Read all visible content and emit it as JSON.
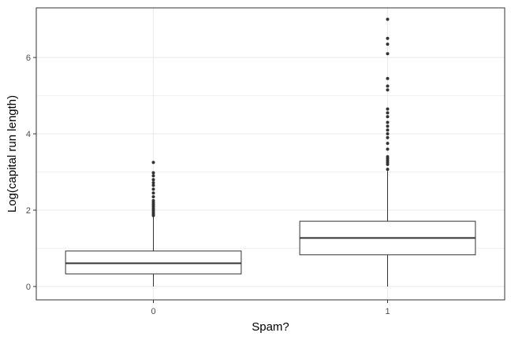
{
  "chart_data": {
    "type": "boxplot",
    "xlabel": "Spam?",
    "ylabel": "Log(capital run length)",
    "categories": [
      "0",
      "1"
    ],
    "ylim": [
      -0.35,
      7.3
    ],
    "yticks": [
      0,
      2,
      4,
      6
    ],
    "grid": true,
    "legend": "none",
    "boxes": [
      {
        "category": "0",
        "min": 0.0,
        "q1": 0.33,
        "median": 0.61,
        "q3": 0.93,
        "max": 1.83,
        "outliers": [
          1.86,
          1.9,
          1.95,
          2.0,
          2.05,
          2.1,
          2.15,
          2.2,
          2.25,
          2.35,
          2.45,
          2.55,
          2.65,
          2.72,
          2.8,
          2.9,
          2.98,
          3.25
        ]
      },
      {
        "category": "1",
        "min": 0.0,
        "q1": 0.83,
        "median": 1.27,
        "q3": 1.71,
        "max": 3.03,
        "outliers": [
          3.07,
          3.2,
          3.25,
          3.3,
          3.35,
          3.4,
          3.6,
          3.75,
          3.9,
          4.0,
          4.1,
          4.2,
          4.3,
          4.45,
          4.55,
          4.65,
          5.15,
          5.25,
          5.45,
          6.1,
          6.35,
          6.5,
          7.0
        ]
      }
    ],
    "colors": {
      "box_stroke": "#333333",
      "box_fill": "#ffffff",
      "outlier": "#333333",
      "grid": "#ebebeb",
      "panel_border": "#333333",
      "tick_text": "#4d4d4d"
    }
  }
}
